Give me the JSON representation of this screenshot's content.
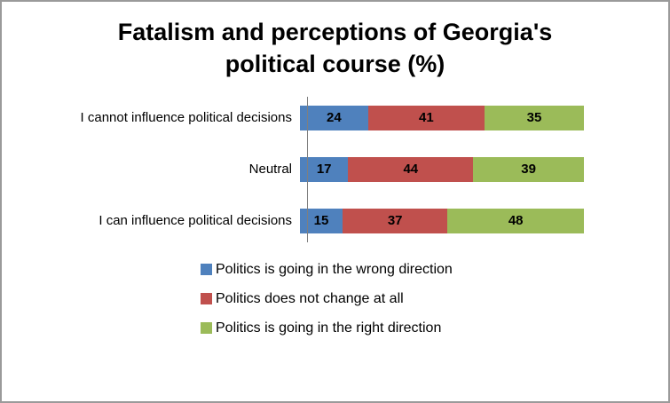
{
  "title_lines": [
    "Fatalism and perceptions of Georgia's",
    "political course (%)"
  ],
  "chart_data": {
    "type": "bar",
    "orientation": "horizontal",
    "stacked": true,
    "title": "Fatalism and perceptions of Georgia's political course (%)",
    "categories": [
      "I cannot influence political decisions",
      "Neutral",
      "I can influence political decisions"
    ],
    "series": [
      {
        "name": "Politics is going in the wrong direction",
        "color": "#4F81BD",
        "values": [
          24,
          17,
          15
        ]
      },
      {
        "name": "Politics does not change at all",
        "color": "#C0504D",
        "values": [
          41,
          44,
          37
        ]
      },
      {
        "name": "Politics is going in the right direction",
        "color": "#9BBB59",
        "values": [
          35,
          39,
          48
        ]
      }
    ],
    "xlim": [
      0,
      100
    ],
    "xlabel": "",
    "ylabel": "",
    "grid": false,
    "legend_position": "bottom-left",
    "value_labels": "inside-center"
  }
}
